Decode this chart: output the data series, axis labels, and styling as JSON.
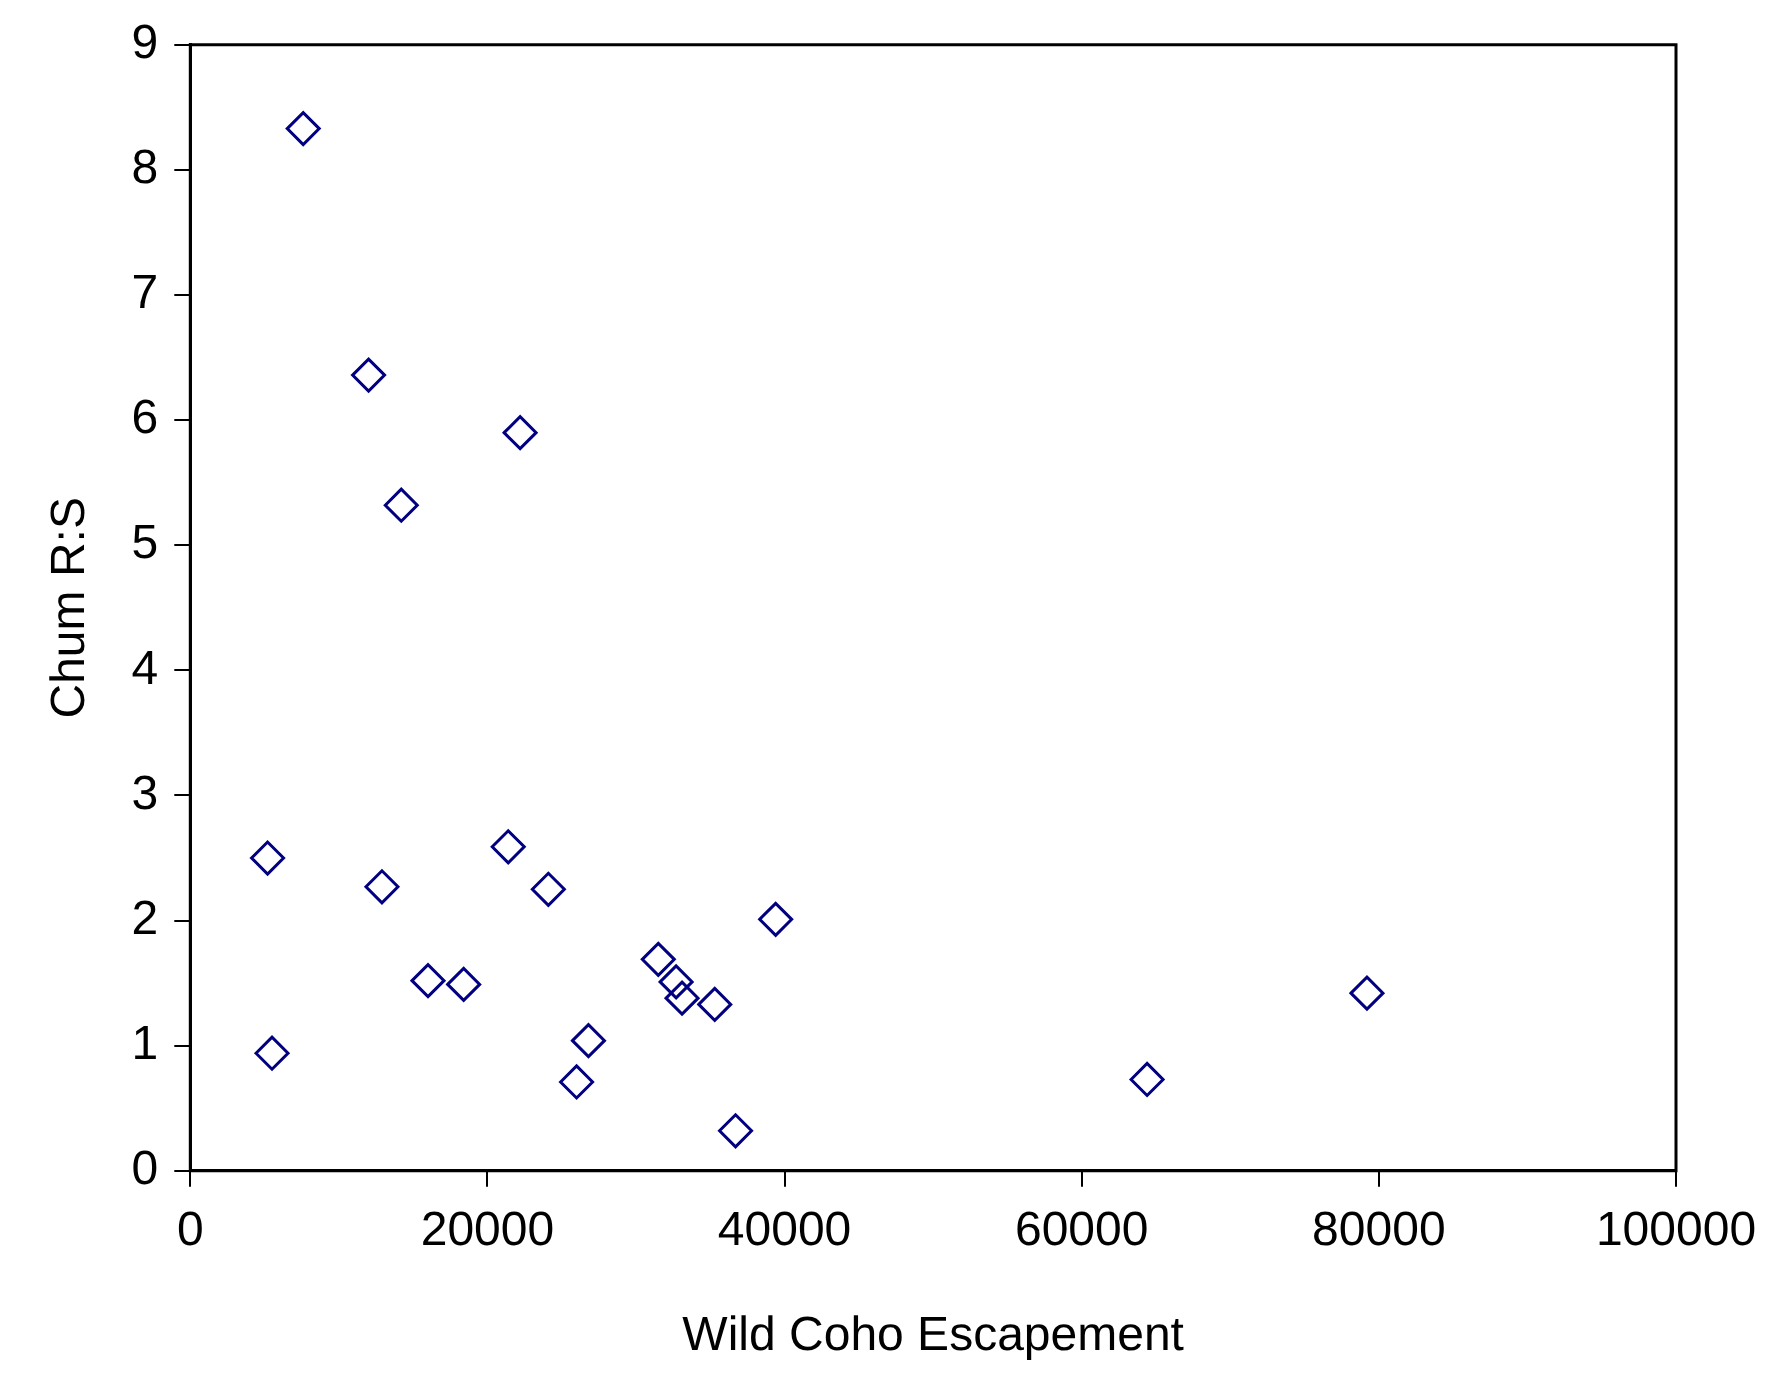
{
  "chart_data": {
    "type": "scatter",
    "xlabel": "Wild Coho Escapement",
    "ylabel": "Chum R:S",
    "xlim": [
      0,
      100000
    ],
    "xticks": [
      0,
      20000,
      40000,
      60000,
      80000,
      100000
    ],
    "ylim": [
      0,
      9
    ],
    "yticks": [
      0,
      1,
      2,
      3,
      4,
      5,
      6,
      7,
      8,
      9
    ],
    "grid": false,
    "legend": false,
    "marker": "diamond",
    "series": [
      {
        "color": "#000080",
        "x": [
          7600,
          12000,
          22200,
          14200,
          5200,
          12900,
          21400,
          24100,
          16000,
          18400,
          5500,
          26800,
          26000,
          31500,
          32700,
          33100,
          35300,
          39400,
          36700,
          64400,
          79200
        ],
        "values": [
          8.33,
          6.36,
          5.9,
          5.32,
          2.5,
          2.27,
          2.59,
          2.25,
          1.52,
          1.49,
          0.94,
          1.04,
          0.71,
          1.69,
          1.51,
          1.38,
          1.33,
          2.01,
          0.32,
          0.73,
          1.42
        ]
      }
    ]
  }
}
